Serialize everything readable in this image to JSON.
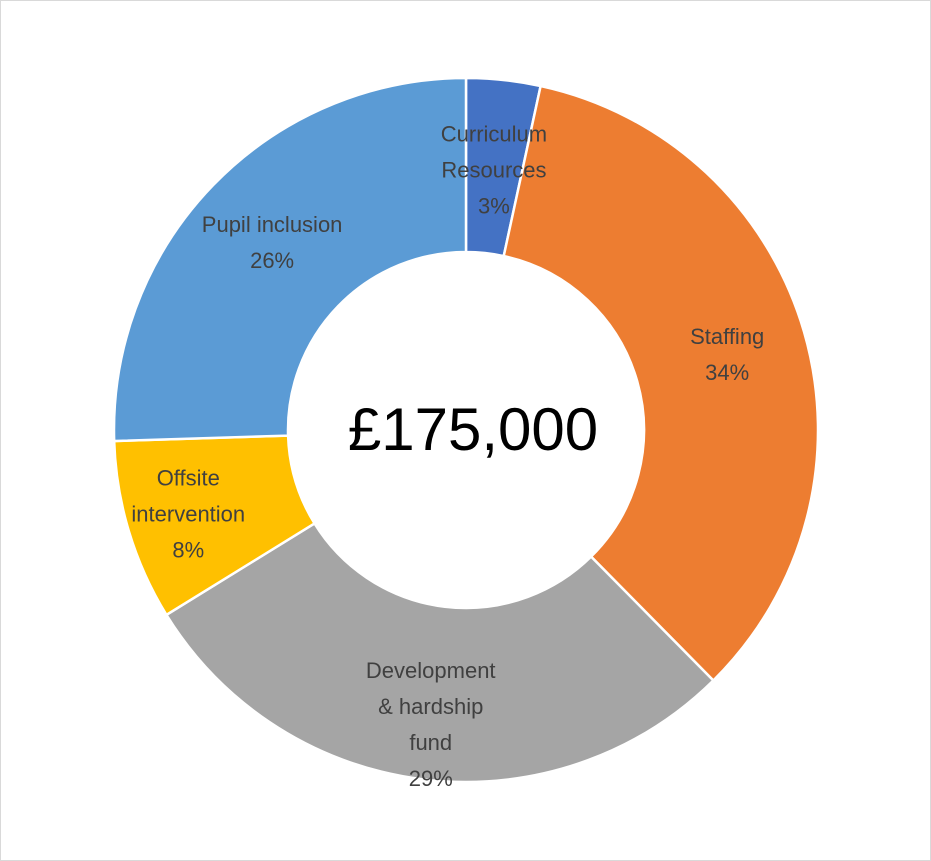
{
  "chart_data": {
    "type": "pie",
    "variant": "donut",
    "center_text": "£175,000",
    "slices": [
      {
        "name": "Curriculum Resources",
        "label_lines": [
          "Curriculum",
          "Resources"
        ],
        "percent_label": "3%",
        "value": 3.4,
        "color": "#4472C4"
      },
      {
        "name": "Staffing",
        "label_lines": [
          "Staffing"
        ],
        "percent_label": "34%",
        "value": 34.2,
        "color": "#ED7D31"
      },
      {
        "name": "Development & hardship fund",
        "label_lines": [
          "Development",
          "& hardship",
          "fund"
        ],
        "percent_label": "29%",
        "value": 28.6,
        "color": "#A5A5A5"
      },
      {
        "name": "Offsite intervention",
        "label_lines": [
          "Offsite",
          "intervention"
        ],
        "percent_label": "8%",
        "value": 8.3,
        "color": "#FFC000"
      },
      {
        "name": "Pupil inclusion",
        "label_lines": [
          "Pupil inclusion"
        ],
        "percent_label": "26%",
        "value": 25.5,
        "color": "#5B9BD5"
      }
    ],
    "legend": "none",
    "start_angle": "12 o'clock",
    "direction": "clockwise"
  }
}
